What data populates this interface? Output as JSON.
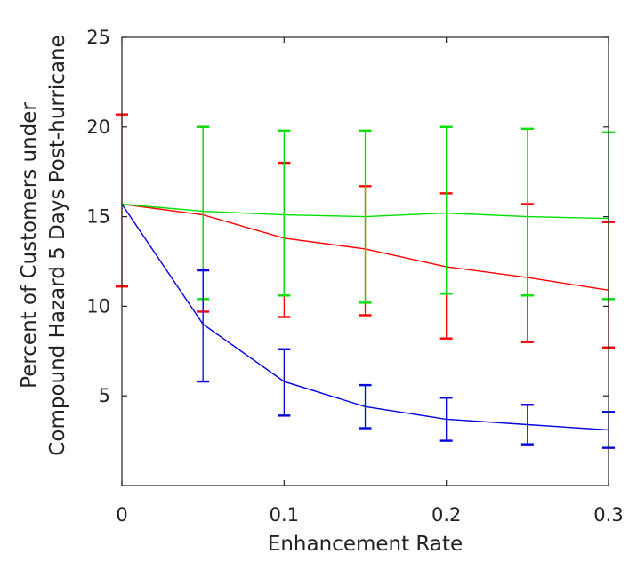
{
  "chart_data": {
    "type": "line",
    "title": "",
    "xlabel": "Enhancement Rate",
    "ylabel_lines": [
      "Percent of Customers under",
      "Compound Hazard 5 Days Post-hurricane"
    ],
    "xlim": [
      0,
      0.3
    ],
    "ylim": [
      0,
      25
    ],
    "x_ticks": [
      0,
      0.1,
      0.2,
      0.3
    ],
    "x_tick_labels": [
      "0",
      "0.1",
      "0.2",
      "0.3"
    ],
    "y_ticks": [
      5,
      10,
      15,
      20,
      25
    ],
    "y_tick_labels": [
      "5",
      "10",
      "15",
      "20",
      "25"
    ],
    "grid": false,
    "x": [
      0,
      0.05,
      0.1,
      0.15,
      0.2,
      0.25,
      0.3
    ],
    "series": [
      {
        "color": "#ff0000",
        "values": [
          15.7,
          15.1,
          13.8,
          13.2,
          12.2,
          11.6,
          10.9
        ],
        "lower": [
          11.1,
          9.7,
          9.4,
          9.5,
          8.2,
          8.0,
          7.7
        ],
        "upper": [
          20.7,
          20.0,
          18.0,
          16.7,
          16.3,
          15.7,
          14.7
        ]
      },
      {
        "color": "#00e000",
        "values": [
          15.7,
          15.3,
          15.1,
          15.0,
          15.2,
          15.0,
          14.9
        ],
        "lower": [
          15.7,
          10.4,
          10.6,
          10.2,
          10.7,
          10.6,
          10.4
        ],
        "upper": [
          15.7,
          20.0,
          19.8,
          19.8,
          20.0,
          19.9,
          19.7
        ]
      },
      {
        "color": "#0000dd",
        "values": [
          15.7,
          9.0,
          5.8,
          4.4,
          3.7,
          3.4,
          3.1
        ],
        "lower": [
          15.7,
          5.8,
          3.9,
          3.2,
          2.5,
          2.3,
          2.1
        ],
        "upper": [
          15.7,
          12.0,
          7.6,
          5.6,
          4.9,
          4.5,
          4.1
        ]
      }
    ]
  }
}
